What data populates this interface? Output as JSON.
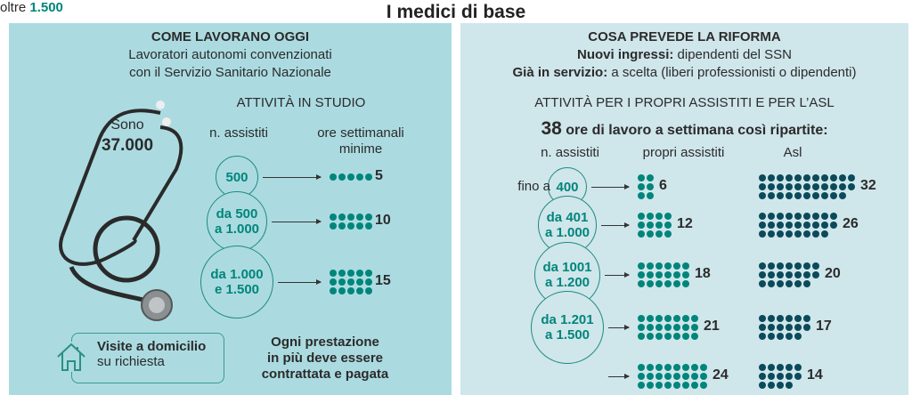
{
  "title": "I medici di base",
  "left": {
    "heading": "COME LAVORANO OGGI",
    "sub1": "Lavoratori autonomi convenzionati",
    "sub2": "con il Servizio Sanitario Nazionale",
    "sono": "Sono",
    "count": "37.000",
    "section": "ATTIVITÀ IN STUDIO",
    "col_assistiti": "n. assistiti",
    "col_ore1": "ore settimanali",
    "col_ore2": "minime",
    "rows": [
      {
        "l1": "500",
        "l2": "",
        "hours": 5
      },
      {
        "l1": "da 500",
        "l2": "a 1.000",
        "hours": 10
      },
      {
        "l1": "da 1.000",
        "l2": "e 1.500",
        "hours": 15
      }
    ],
    "visite_bold": "Visite a domicilio",
    "visite_sub": "su richiesta",
    "note1": "Ogni prestazione",
    "note2": "in più deve essere",
    "note3": "contrattata e pagata"
  },
  "right": {
    "heading": "COSA PREVEDE LA RIFORMA",
    "nuovi_bold": "Nuovi ingressi:",
    "nuovi_text": " dipendenti del SSN",
    "gia_bold": "Già in servizio:",
    "gia_text": " a scelta (liberi professionisti o dipendenti)",
    "section": "ATTIVITÀ PER I PROPRI ASSISTITI E PER L’ASL",
    "ore_num": "38",
    "ore_text": " ore di lavoro a settimana così ripartite:",
    "col_assistiti": "n. assistiti",
    "col_propri": "propri assistiti",
    "col_asl": "Asl",
    "rows": [
      {
        "pre": "fino a ",
        "l1": "400",
        "l2": "",
        "propri": 6,
        "asl": 32
      },
      {
        "pre": "",
        "l1": "da 401",
        "l2": "a 1.000",
        "propri": 12,
        "asl": 26
      },
      {
        "pre": "",
        "l1": "da 1001",
        "l2": "a 1.200",
        "propri": 18,
        "asl": 20
      },
      {
        "pre": "",
        "l1": "da 1.201",
        "l2": "a 1.500",
        "propri": 21,
        "asl": 17
      },
      {
        "pre": "oltre ",
        "l1": "1.500",
        "l2": "",
        "propri": 24,
        "asl": 14
      }
    ]
  },
  "colors": {
    "teal": "#00857b",
    "dark": "#0b4a5a"
  }
}
